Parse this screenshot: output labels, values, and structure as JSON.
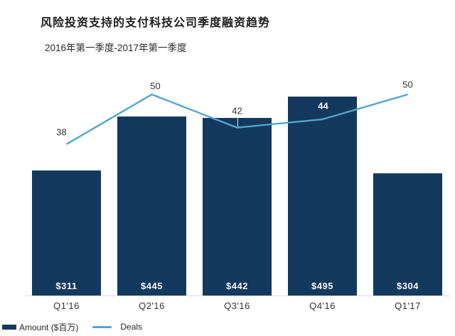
{
  "title": "风险投资支持的支付科技公司季度融资趋势",
  "subtitle": "2016年第一季度-2017年第一季度",
  "legend": {
    "amount_label": "Amount ($百万)",
    "deals_label": "Deals"
  },
  "chart_data": {
    "type": "bar",
    "subtype": "bar-line-combo",
    "title": "风险投资支持的支付科技公司季度融资趋势",
    "subtitle": "2016年第一季度-2017年第一季度",
    "categories": [
      "Q1'16",
      "Q2'16",
      "Q3'16",
      "Q4'16",
      "Q1'17"
    ],
    "series": [
      {
        "name": "Amount ($百万)",
        "type": "bar",
        "values": [
          311,
          445,
          442,
          495,
          304
        ],
        "value_labels": [
          "$311",
          "$445",
          "$442",
          "$495",
          "$304"
        ],
        "color": "#14395e"
      },
      {
        "name": "Deals",
        "type": "line",
        "values": [
          38,
          50,
          42,
          44,
          50
        ],
        "color": "#53a6c9"
      }
    ],
    "xlabel": "",
    "ylabel": "",
    "grid": false,
    "legend_position": "bottom-left",
    "value_labels_shown": true
  },
  "colors": {
    "bar": "#14395e",
    "line": "#53a6c9",
    "axis": "#d9d9d9",
    "label_text": "#333333",
    "bar_label_text": "#f7f7f7",
    "title_text": "#1c1c1c"
  }
}
